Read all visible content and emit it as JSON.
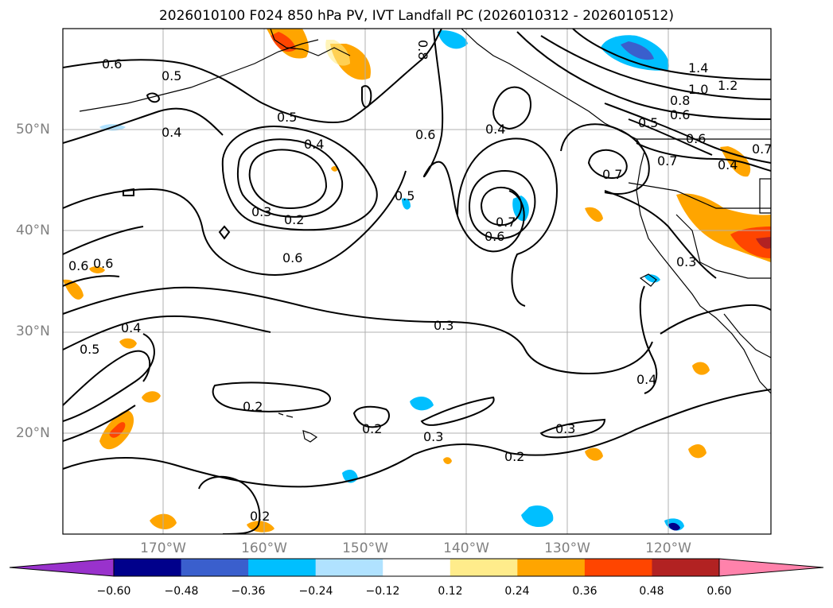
{
  "title": "2026010100 F024 850 hPa PV, IVT Landfall PC (2026010312 - 2026010512)",
  "map": {
    "lat_labels": [
      "50°N",
      "40°N",
      "30°N",
      "20°N"
    ],
    "lon_labels": [
      "170°W",
      "160°W",
      "150°W",
      "140°W",
      "130°W",
      "120°W"
    ],
    "contour_labels": [
      "0.6",
      "0.5",
      "0.4",
      "0.8",
      "0.5",
      "0.4",
      "0.6",
      "0.4",
      "1.4",
      "1.2",
      "1.0",
      "0.8",
      "0.6",
      "0.5",
      "0.7",
      "0.7",
      "0.4",
      "0.6",
      "0.7",
      "0.3",
      "0.2",
      "0.5",
      "0.6",
      "0.7",
      "0.6",
      "0.6",
      "0.6",
      "0.3",
      "0.4",
      "0.5",
      "0.3",
      "0.4",
      "0.2",
      "0.2",
      "0.3",
      "0.3",
      "0.2",
      "0.2"
    ]
  },
  "colorbar": {
    "tick_labels": [
      "−0.60",
      "−0.48",
      "−0.36",
      "−0.24",
      "−0.12",
      "0.12",
      "0.24",
      "0.36",
      "0.48",
      "0.60"
    ],
    "colors": [
      "#9932cc",
      "#00008b",
      "#3a5fcd",
      "#00bfff",
      "#b0e2ff",
      "#ffffff",
      "#ffec8b",
      "#ffa500",
      "#ff4500",
      "#b22222",
      "#ff82ab"
    ]
  }
}
